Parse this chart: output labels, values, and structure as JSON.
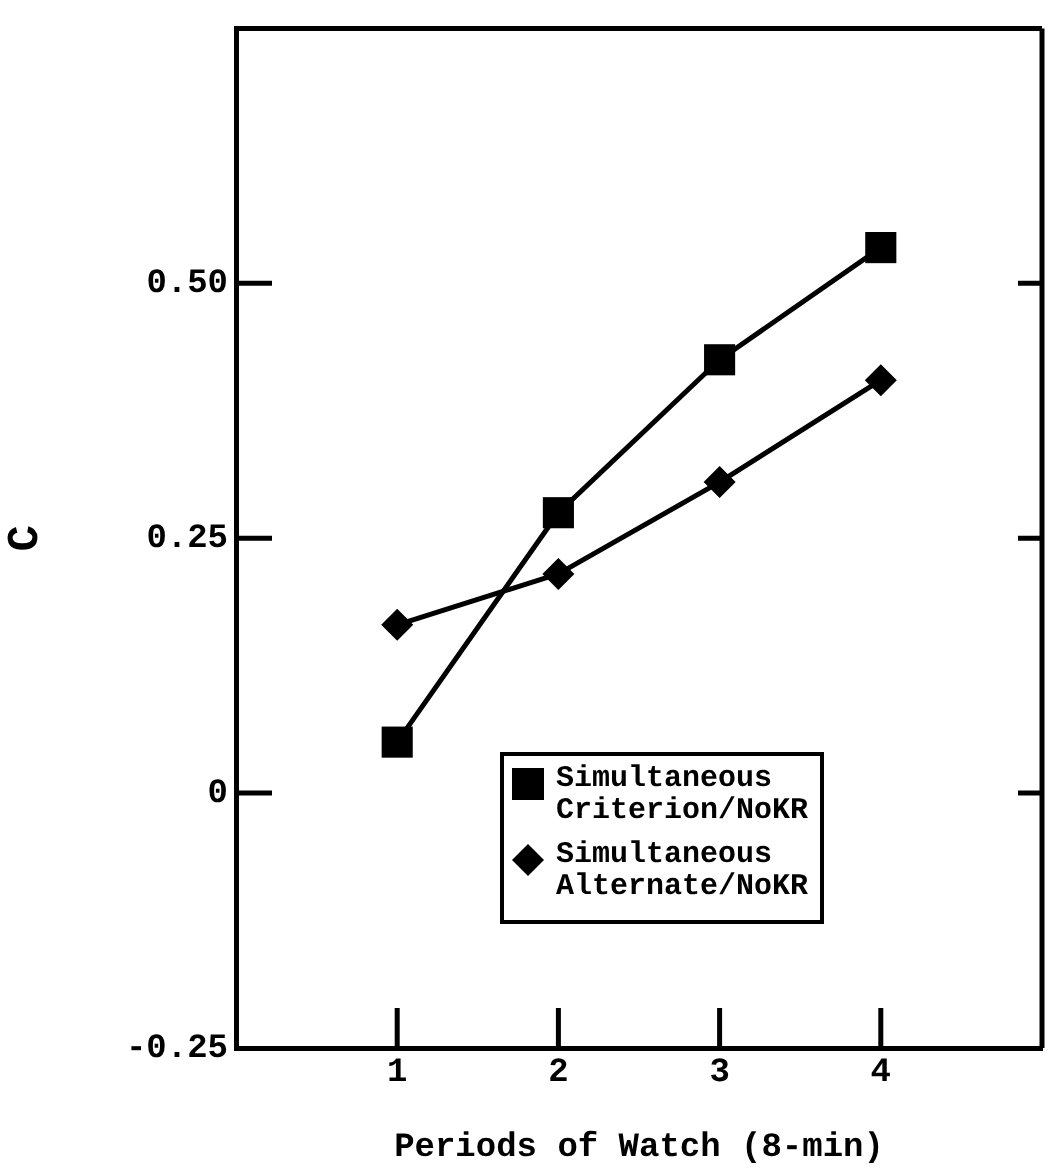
{
  "chart_data": {
    "type": "line",
    "xlabel": "Periods of Watch (8-min)",
    "ylabel": "C",
    "x": [
      1,
      2,
      3,
      4
    ],
    "series": [
      {
        "name": "Simultaneous Criterion/NoKR",
        "color": "#000000",
        "marker": "square",
        "values": [
          0.05,
          0.275,
          0.425,
          0.535
        ]
      },
      {
        "name": "Simultaneous Alternate/NoKR",
        "color": "#000000",
        "marker": "diamond",
        "values": [
          0.165,
          0.215,
          0.305,
          0.405
        ]
      }
    ],
    "xlim": [
      0,
      5
    ],
    "xticks": [
      1,
      2,
      3,
      4
    ],
    "ylim": [
      -0.25,
      0.75
    ],
    "yticks": [
      -0.25,
      0,
      0.25,
      {
        "value": 0.5,
        "label": "0.50"
      },
      {
        "value": 0.75,
        "label": null
      }
    ],
    "grid": false,
    "legend": "bottom right",
    "line_style": "solid"
  }
}
